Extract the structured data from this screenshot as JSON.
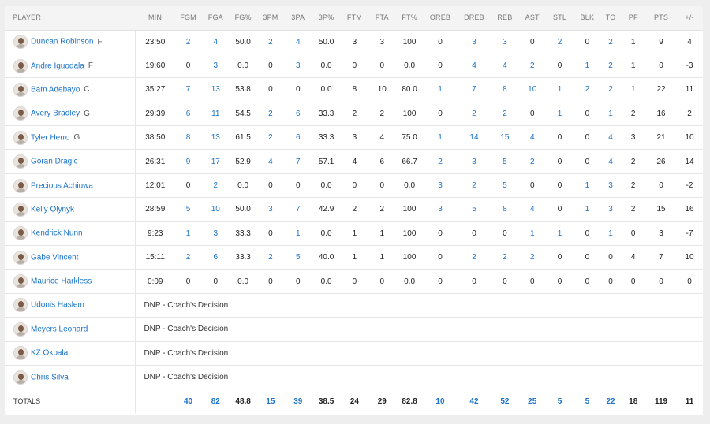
{
  "columns": [
    "PLAYER",
    "MIN",
    "FGM",
    "FGA",
    "FG%",
    "3PM",
    "3PA",
    "3P%",
    "FTM",
    "FTA",
    "FT%",
    "OREB",
    "DREB",
    "REB",
    "AST",
    "STL",
    "BLK",
    "TO",
    "PF",
    "PTS",
    "+/-"
  ],
  "players": [
    {
      "name": "Duncan Robinson",
      "pos": "F",
      "stats": [
        "23:50",
        "2",
        "4",
        "50.0",
        "2",
        "4",
        "50.0",
        "3",
        "3",
        "100",
        "0",
        "3",
        "3",
        "0",
        "2",
        "0",
        "2",
        "1",
        "9",
        "4"
      ]
    },
    {
      "name": "Andre Iguodala",
      "pos": "F",
      "stats": [
        "19:60",
        "0",
        "3",
        "0.0",
        "0",
        "3",
        "0.0",
        "0",
        "0",
        "0.0",
        "0",
        "4",
        "4",
        "2",
        "0",
        "1",
        "2",
        "1",
        "0",
        "-3"
      ]
    },
    {
      "name": "Bam Adebayo",
      "pos": "C",
      "stats": [
        "35:27",
        "7",
        "13",
        "53.8",
        "0",
        "0",
        "0.0",
        "8",
        "10",
        "80.0",
        "1",
        "7",
        "8",
        "10",
        "1",
        "2",
        "2",
        "1",
        "22",
        "11"
      ]
    },
    {
      "name": "Avery Bradley",
      "pos": "G",
      "stats": [
        "29:39",
        "6",
        "11",
        "54.5",
        "2",
        "6",
        "33.3",
        "2",
        "2",
        "100",
        "0",
        "2",
        "2",
        "0",
        "1",
        "0",
        "1",
        "2",
        "16",
        "2"
      ]
    },
    {
      "name": "Tyler Herro",
      "pos": "G",
      "stats": [
        "38:50",
        "8",
        "13",
        "61.5",
        "2",
        "6",
        "33.3",
        "3",
        "4",
        "75.0",
        "1",
        "14",
        "15",
        "4",
        "0",
        "0",
        "4",
        "3",
        "21",
        "10"
      ]
    },
    {
      "name": "Goran Dragic",
      "pos": "",
      "stats": [
        "26:31",
        "9",
        "17",
        "52.9",
        "4",
        "7",
        "57.1",
        "4",
        "6",
        "66.7",
        "2",
        "3",
        "5",
        "2",
        "0",
        "0",
        "4",
        "2",
        "26",
        "14"
      ]
    },
    {
      "name": "Precious Achiuwa",
      "pos": "",
      "stats": [
        "12:01",
        "0",
        "2",
        "0.0",
        "0",
        "0",
        "0.0",
        "0",
        "0",
        "0.0",
        "3",
        "2",
        "5",
        "0",
        "0",
        "1",
        "3",
        "2",
        "0",
        "-2"
      ]
    },
    {
      "name": "Kelly Olynyk",
      "pos": "",
      "stats": [
        "28:59",
        "5",
        "10",
        "50.0",
        "3",
        "7",
        "42.9",
        "2",
        "2",
        "100",
        "3",
        "5",
        "8",
        "4",
        "0",
        "1",
        "3",
        "2",
        "15",
        "16"
      ]
    },
    {
      "name": "Kendrick Nunn",
      "pos": "",
      "stats": [
        "9:23",
        "1",
        "3",
        "33.3",
        "0",
        "1",
        "0.0",
        "1",
        "1",
        "100",
        "0",
        "0",
        "0",
        "1",
        "1",
        "0",
        "1",
        "0",
        "3",
        "-7"
      ]
    },
    {
      "name": "Gabe Vincent",
      "pos": "",
      "stats": [
        "15:11",
        "2",
        "6",
        "33.3",
        "2",
        "5",
        "40.0",
        "1",
        "1",
        "100",
        "0",
        "2",
        "2",
        "2",
        "0",
        "0",
        "0",
        "4",
        "7",
        "10"
      ]
    },
    {
      "name": "Maurice Harkless",
      "pos": "",
      "stats": [
        "0:09",
        "0",
        "0",
        "0.0",
        "0",
        "0",
        "0.0",
        "0",
        "0",
        "0.0",
        "0",
        "0",
        "0",
        "0",
        "0",
        "0",
        "0",
        "0",
        "0",
        "0"
      ]
    }
  ],
  "dnp_players": [
    {
      "name": "Udonis Haslem",
      "note": "DNP - Coach's Decision"
    },
    {
      "name": "Meyers Leonard",
      "note": "DNP - Coach's Decision"
    },
    {
      "name": "KZ Okpala",
      "note": "DNP - Coach's Decision"
    },
    {
      "name": "Chris Silva",
      "note": "DNP - Coach's Decision"
    }
  ],
  "totals": {
    "label": "TOTALS",
    "stats": [
      "",
      "40",
      "82",
      "48.8",
      "15",
      "39",
      "38.5",
      "24",
      "29",
      "82.8",
      "10",
      "42",
      "52",
      "25",
      "5",
      "5",
      "22",
      "18",
      "119",
      "11"
    ]
  },
  "colors": {
    "link": "#1a73c9",
    "header_bg": "#f4f4f4",
    "border": "#e6e6e6"
  }
}
